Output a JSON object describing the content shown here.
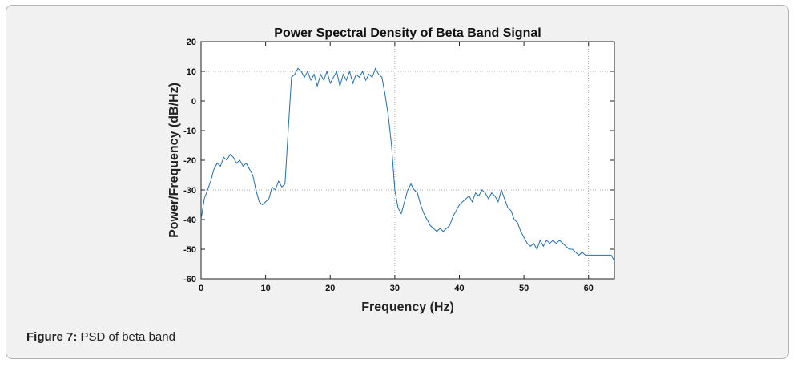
{
  "caption": {
    "label": "Figure 7:",
    "text": "PSD of beta band"
  },
  "chart_data": {
    "type": "line",
    "title": "Power Spectral Density of Beta Band Signal",
    "xlabel": "Frequency (Hz)",
    "ylabel": "Power/Frequency (dB/Hz)",
    "xlim": [
      0,
      64
    ],
    "ylim": [
      -60,
      20
    ],
    "xticks": [
      0,
      10,
      20,
      30,
      40,
      50,
      60
    ],
    "yticks": [
      20,
      10,
      0,
      -10,
      -20,
      -30,
      -40,
      -50,
      -60
    ],
    "grid": true,
    "grid_x": [
      30,
      60
    ],
    "grid_y": [
      10,
      -30
    ],
    "color": "#1f6fb5",
    "series": [
      {
        "x": [
          0,
          0.5,
          1,
          1.5,
          2,
          2.5,
          3,
          3.5,
          4,
          4.5,
          5,
          5.5,
          6,
          6.5,
          7,
          7.5,
          8,
          8.5,
          9,
          9.5,
          10,
          10.5,
          11,
          11.5,
          12,
          12.5,
          13,
          13.5,
          14,
          14.5,
          15,
          15.5,
          16,
          16.5,
          17,
          17.5,
          18,
          18.5,
          19,
          19.5,
          20,
          20.5,
          21,
          21.5,
          22,
          22.5,
          23,
          23.5,
          24,
          24.5,
          25,
          25.5,
          26,
          26.5,
          27,
          27.5,
          28,
          28.5,
          29,
          29.5,
          30,
          30.5,
          31,
          31.5,
          32,
          32.5,
          33,
          33.5,
          34,
          34.5,
          35,
          35.5,
          36,
          36.5,
          37,
          37.5,
          38,
          38.5,
          39,
          39.5,
          40,
          40.5,
          41,
          41.5,
          42,
          42.5,
          43,
          43.5,
          44,
          44.5,
          45,
          45.5,
          46,
          46.5,
          47,
          47.5,
          48,
          48.5,
          49,
          49.5,
          50,
          50.5,
          51,
          51.5,
          52,
          52.5,
          53,
          53.5,
          54,
          54.5,
          55,
          55.5,
          56,
          56.5,
          57,
          57.5,
          58,
          58.5,
          59,
          59.5,
          60,
          60.5,
          61,
          61.5,
          62,
          62.5,
          63,
          63.5,
          64
        ],
        "values": [
          -40,
          -33,
          -30,
          -27,
          -23,
          -21,
          -22,
          -19,
          -20,
          -18,
          -19,
          -21,
          -20,
          -22,
          -21,
          -23,
          -25,
          -30,
          -34,
          -35,
          -34,
          -33,
          -29,
          -30,
          -27,
          -29,
          -28,
          -10,
          8,
          9,
          11,
          10,
          8,
          10,
          7,
          9,
          5,
          9,
          7,
          10,
          6,
          8,
          10,
          5,
          9,
          7,
          10,
          6,
          9,
          8,
          10,
          7,
          9,
          8,
          11,
          9,
          8,
          2,
          -5,
          -15,
          -30,
          -36,
          -38,
          -34,
          -30,
          -28,
          -30,
          -31,
          -35,
          -38,
          -40,
          -42,
          -43,
          -44,
          -43,
          -44,
          -43,
          -42,
          -39,
          -37,
          -35,
          -34,
          -33,
          -32,
          -34,
          -31,
          -32,
          -30,
          -31,
          -33,
          -31,
          -32,
          -34,
          -30,
          -33,
          -36,
          -37,
          -40,
          -41,
          -44,
          -46,
          -48,
          -49,
          -48,
          -50,
          -47,
          -49,
          -47,
          -48,
          -47,
          -48,
          -47,
          -48,
          -49,
          -50,
          -50,
          -51,
          -52,
          -51,
          -52,
          -52,
          -52,
          -52,
          -52,
          -52,
          -52,
          -52,
          -52,
          -54
        ]
      }
    ]
  }
}
